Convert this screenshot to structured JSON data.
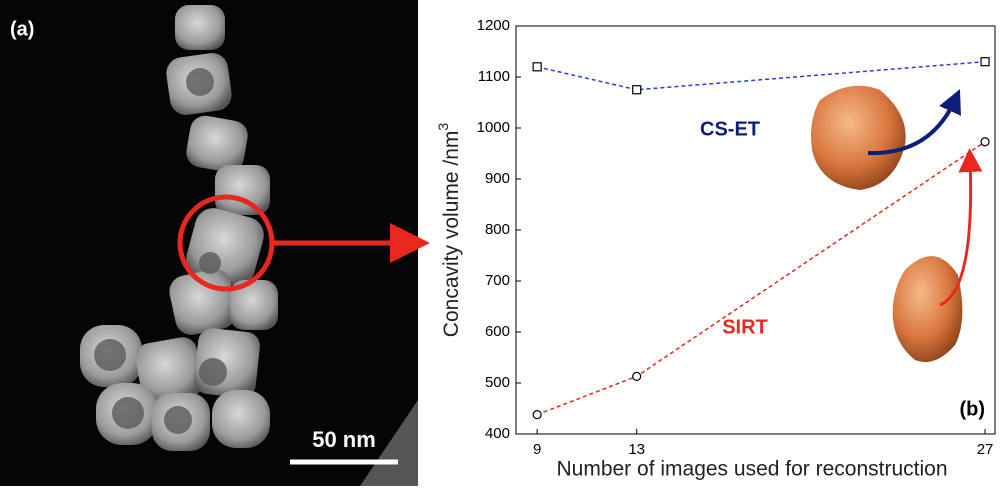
{
  "image_panel": {
    "label": "(a)",
    "scale_bar": "50 nm"
  },
  "chart_data": {
    "type": "line",
    "panel_label": "(b)",
    "xlabel": "Number of images used for reconstruction",
    "ylabel": "Concavity volume /nm",
    "ylabel_sup": "3",
    "x": [
      9,
      13,
      27
    ],
    "series": [
      {
        "name": "CS-ET",
        "color": "#2b3fd0",
        "label_color": "#0a1f7a",
        "marker": "square",
        "values": [
          1120,
          1075,
          1130
        ]
      },
      {
        "name": "SIRT",
        "color": "#e8281e",
        "label_color": "#e8281e",
        "marker": "circle",
        "values": [
          438,
          513,
          973
        ]
      }
    ],
    "xlim": [
      8.15,
      27.4
    ],
    "xticks": [
      9,
      13,
      27
    ],
    "ylim": [
      400,
      1200
    ],
    "yticks": [
      400,
      500,
      600,
      700,
      800,
      900,
      1000,
      1100,
      1200
    ]
  }
}
